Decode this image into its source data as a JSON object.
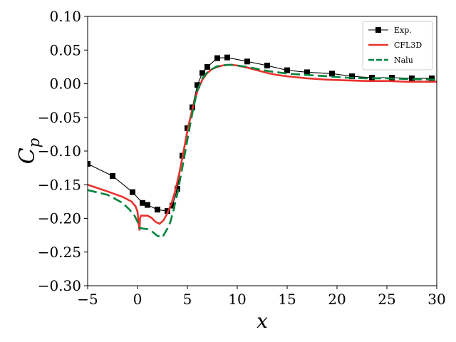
{
  "chart_data": {
    "type": "line",
    "xlabel": "x",
    "ylabel_main": "C",
    "ylabel_sub": "p",
    "xlim": [
      -5,
      30
    ],
    "ylim": [
      -0.3,
      0.1
    ],
    "xticks": [
      -5,
      0,
      5,
      10,
      15,
      20,
      25,
      30
    ],
    "xtick_labels": [
      "−5",
      "0",
      "5",
      "10",
      "15",
      "20",
      "25",
      "30"
    ],
    "yticks": [
      -0.3,
      -0.25,
      -0.2,
      -0.15,
      -0.1,
      -0.05,
      0.0,
      0.05,
      0.1
    ],
    "ytick_labels": [
      "−0.30",
      "−0.25",
      "−0.20",
      "−0.15",
      "−0.10",
      "−0.05",
      "0.00",
      "0.05",
      "0.10"
    ],
    "grid": false,
    "legend_position": "top-right",
    "series": [
      {
        "name": "Exp.",
        "color": "#000000",
        "style": "line-square-markers",
        "x": [
          -5,
          -2.5,
          -0.5,
          0.5,
          1.0,
          2.0,
          3.0,
          3.5,
          4.0,
          4.5,
          5.0,
          5.5,
          6.0,
          6.5,
          7.0,
          8.0,
          9.0,
          11.0,
          13.0,
          15.0,
          17.0,
          19.5,
          21.5,
          23.5,
          25.5,
          27.5,
          29.5
        ],
        "y": [
          -0.119,
          -0.137,
          -0.161,
          -0.177,
          -0.18,
          -0.187,
          -0.189,
          -0.181,
          -0.156,
          -0.107,
          -0.066,
          -0.035,
          -0.002,
          0.016,
          0.025,
          0.038,
          0.039,
          0.033,
          0.027,
          0.02,
          0.017,
          0.015,
          0.011,
          0.009,
          0.009,
          0.008,
          0.008
        ]
      },
      {
        "name": "CFL3D",
        "color": "#e8322d",
        "style": "solid",
        "x": [
          -5,
          -3,
          -1.5,
          -0.6,
          -0.2,
          0,
          0.1,
          0.2,
          0.25,
          0.35,
          0.6,
          1.0,
          1.4,
          1.8,
          2.2,
          2.6,
          3.0,
          3.4,
          3.8,
          4.2,
          4.6,
          5.0,
          5.5,
          6.0,
          6.5,
          7.0,
          7.5,
          8.0,
          8.5,
          9.0,
          9.5,
          10.0,
          11.0,
          12.0,
          13.0,
          14.0,
          15.0,
          17.0,
          19.0,
          21.0,
          23.0,
          25.0,
          27.0,
          30.0
        ],
        "y": [
          -0.15,
          -0.16,
          -0.168,
          -0.175,
          -0.182,
          -0.19,
          -0.205,
          -0.218,
          -0.2,
          -0.196,
          -0.196,
          -0.196,
          -0.199,
          -0.205,
          -0.208,
          -0.203,
          -0.192,
          -0.178,
          -0.158,
          -0.132,
          -0.102,
          -0.07,
          -0.038,
          -0.011,
          0.006,
          0.016,
          0.022,
          0.025,
          0.027,
          0.028,
          0.028,
          0.027,
          0.024,
          0.02,
          0.016,
          0.013,
          0.011,
          0.008,
          0.006,
          0.005,
          0.004,
          0.004,
          0.003,
          0.003
        ]
      },
      {
        "name": "Nalu",
        "color": "#00843d",
        "style": "dashed",
        "x": [
          -5,
          -3,
          -1.5,
          -0.8,
          -0.3,
          0,
          0.2,
          0.5,
          1.0,
          1.5,
          2.0,
          2.5,
          3.0,
          3.3,
          3.6,
          4.0,
          4.4,
          4.8,
          5.2,
          5.6,
          6.0,
          6.5,
          7.0,
          7.5,
          8.0,
          8.5,
          9.0,
          9.5,
          10.0,
          11.0,
          12.0,
          13.0,
          14.0,
          15.0,
          17.0,
          19.0,
          21.0,
          23.0,
          25.0,
          27.0,
          30.0
        ],
        "y": [
          -0.158,
          -0.165,
          -0.177,
          -0.187,
          -0.196,
          -0.205,
          -0.214,
          -0.215,
          -0.216,
          -0.22,
          -0.226,
          -0.228,
          -0.215,
          -0.205,
          -0.188,
          -0.163,
          -0.132,
          -0.1,
          -0.067,
          -0.036,
          -0.01,
          0.008,
          0.017,
          0.022,
          0.026,
          0.027,
          0.028,
          0.028,
          0.027,
          0.025,
          0.022,
          0.019,
          0.017,
          0.015,
          0.013,
          0.011,
          0.009,
          0.008,
          0.008,
          0.007,
          0.006
        ]
      }
    ]
  }
}
